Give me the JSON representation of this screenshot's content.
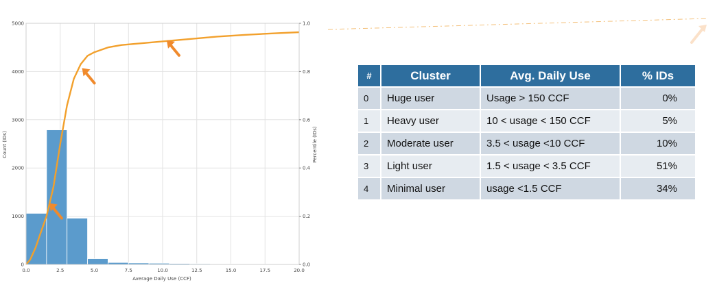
{
  "chart_data": {
    "type": "bar",
    "xlabel": "Average Daily Use (CCF)",
    "ylabel": "Count (IDs)",
    "y2label": "Percentile (IDs)",
    "xlim": [
      0,
      20
    ],
    "ylim": [
      0,
      5000
    ],
    "y2lim": [
      0,
      1.0
    ],
    "x_ticks": [
      "0.0",
      "2.5",
      "5.0",
      "7.5",
      "10.0",
      "12.5",
      "15.0",
      "17.5",
      "20.0"
    ],
    "y_ticks": [
      "0",
      "1000",
      "2000",
      "3000",
      "4000",
      "5000"
    ],
    "y2_ticks": [
      "0.0",
      "0.2",
      "0.4",
      "0.6",
      "0.8",
      "1.0"
    ],
    "grid": true,
    "bin_edges": [
      0,
      1.5,
      3.0,
      4.5,
      6.0,
      7.5,
      9.0,
      10.5,
      12.0,
      13.5,
      15.0,
      16.5,
      18.0,
      19.5
    ],
    "values": [
      1060,
      2790,
      960,
      120,
      40,
      30,
      25,
      20,
      15,
      10,
      8,
      5,
      3
    ],
    "bar_color": "#5b9bcc",
    "cdf": {
      "color": "#f2a02c",
      "x": [
        0,
        0.3,
        0.7,
        1.0,
        1.5,
        2.0,
        2.5,
        3.0,
        3.5,
        4.0,
        4.5,
        5.0,
        5.5,
        6.0,
        7.0,
        8.0,
        9.0,
        10.0,
        12.0,
        14.0,
        16.0,
        18.0,
        20.0
      ],
      "y": [
        0,
        0.02,
        0.07,
        0.12,
        0.2,
        0.32,
        0.5,
        0.66,
        0.77,
        0.83,
        0.865,
        0.88,
        0.89,
        0.9,
        0.91,
        0.915,
        0.92,
        0.925,
        0.935,
        0.945,
        0.952,
        0.958,
        0.963
      ]
    },
    "arrow_color": "#f08a2c",
    "arrows": [
      {
        "x": 1.6,
        "y2": 0.26
      },
      {
        "x": 4.0,
        "y2": 0.82
      },
      {
        "x": 10.2,
        "y2": 0.935
      }
    ]
  },
  "table": {
    "headers": [
      "#",
      "Cluster",
      "Avg. Daily Use",
      "% IDs"
    ],
    "rows": [
      {
        "num": "0",
        "cluster": "Huge user",
        "avg": "Usage > 150 CCF",
        "pct": "0%"
      },
      {
        "num": "1",
        "cluster": "Heavy user",
        "avg": "10 < usage < 150 CCF",
        "pct": "5%"
      },
      {
        "num": "2",
        "cluster": "Moderate user",
        "avg": "3.5 < usage <10 CCF",
        "pct": "10%"
      },
      {
        "num": "3",
        "cluster": "Light user",
        "avg": "1.5 < usage < 3.5 CCF",
        "pct": "51%"
      },
      {
        "num": "4",
        "cluster": "Minimal user",
        "avg": "usage <1.5 CCF",
        "pct": "34%"
      }
    ]
  }
}
